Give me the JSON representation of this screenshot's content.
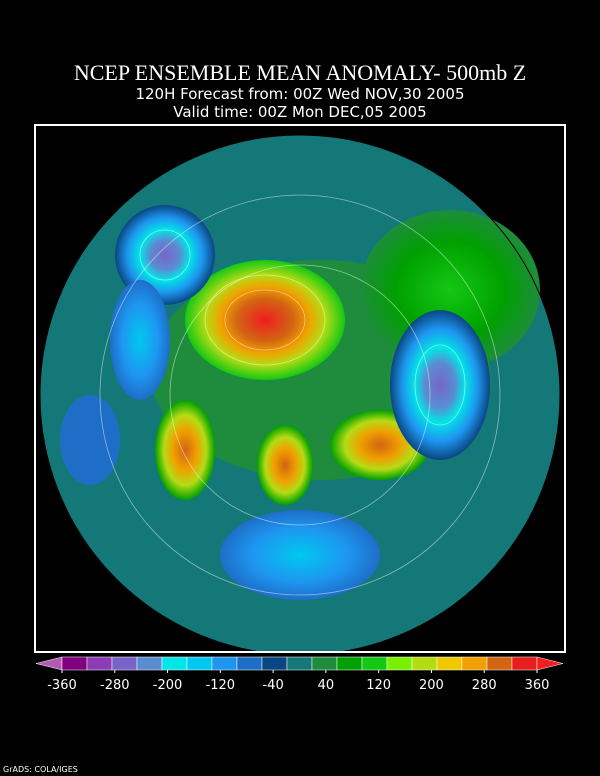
{
  "header": {
    "title": "NCEP ENSEMBLE MEAN ANOMALY- 500mb Z",
    "subtitle": "120H Forecast from: 00Z Wed NOV,30 2005",
    "valid_time": "Valid time: 00Z Mon DEC,05 2005"
  },
  "colorbar": {
    "range": [
      -360,
      360
    ],
    "ticks": [
      -360,
      -280,
      -200,
      -120,
      -40,
      40,
      120,
      200,
      280,
      360
    ],
    "colors": [
      "#b45ab4",
      "#800080",
      "#8c3cb4",
      "#7864c8",
      "#5a8cd2",
      "#00e6e6",
      "#00c8f0",
      "#1e96f0",
      "#1e6ec8",
      "#0a4682",
      "#147878",
      "#1e8c3c",
      "#00a000",
      "#14c814",
      "#78f000",
      "#b4dc14",
      "#f0c800",
      "#f0a000",
      "#d26414",
      "#e61e1e",
      "#f01e1e"
    ]
  },
  "footer": "GrADS: COLA/IGES"
}
